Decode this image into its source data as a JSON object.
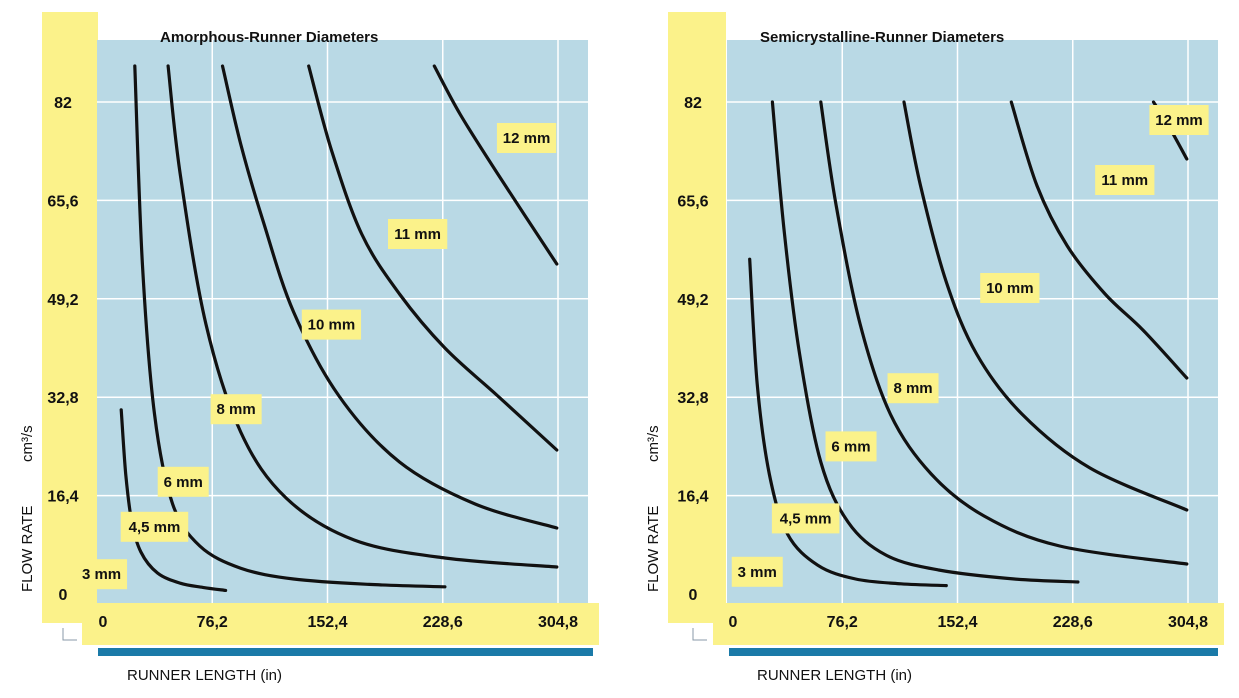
{
  "colors": {
    "plot_background": "#b9d9e5",
    "grid": "#ffffff",
    "label_highlight": "#fbf28a",
    "curve": "#111111",
    "axis_bar": "#1a7aa8"
  },
  "chart_data": [
    {
      "type": "line",
      "title": "Amorphous-Runner Diameters",
      "xlabel": "RUNNER LENGTH (in)",
      "ylabel": "FLOW RATE",
      "yunit": "cm³/s",
      "xlim": [
        0,
        304.8
      ],
      "ylim": [
        0,
        82
      ],
      "x_ticks": [
        "0",
        "76,2",
        "152,4",
        "228,6",
        "304,8"
      ],
      "y_ticks": [
        "82",
        "65,6",
        "49,2",
        "32,8",
        "16,4",
        "0"
      ],
      "grid": true,
      "series": [
        {
          "name": "3 mm",
          "label_at": [
            3,
            3.3
          ],
          "points": [
            [
              16,
              30.7
            ],
            [
              19,
              20
            ],
            [
              23,
              12
            ],
            [
              29,
              7
            ],
            [
              40,
              3.5
            ],
            [
              55,
              1.8
            ],
            [
              70,
              1.1
            ],
            [
              85,
              0.6
            ]
          ]
        },
        {
          "name": "4,5 mm",
          "label_at": [
            38,
            11.2
          ],
          "points": [
            [
              25,
              88
            ],
            [
              30,
              55
            ],
            [
              38,
              30
            ],
            [
              50,
              15
            ],
            [
              68,
              8
            ],
            [
              95,
              4.3
            ],
            [
              130,
              2.5
            ],
            [
              180,
              1.6
            ],
            [
              230,
              1.2
            ]
          ]
        },
        {
          "name": "6 mm",
          "label_at": [
            57,
            18.7
          ],
          "points": [
            [
              47,
              88
            ],
            [
              55,
              70
            ],
            [
              72,
              45
            ],
            [
              95,
              27
            ],
            [
              125,
              16
            ],
            [
              170,
              9
            ],
            [
              230,
              6
            ],
            [
              304,
              4.5
            ]
          ]
        },
        {
          "name": "8 mm",
          "label_at": [
            92,
            30.8
          ],
          "points": [
            [
              83,
              88
            ],
            [
              95,
              75
            ],
            [
              110,
              62
            ],
            [
              130,
              47
            ],
            [
              160,
              33
            ],
            [
              200,
              22
            ],
            [
              250,
              15
            ],
            [
              304,
              11
            ]
          ]
        },
        {
          "name": "10 mm",
          "label_at": [
            155,
            44.9
          ],
          "points": [
            [
              140,
              88
            ],
            [
              155,
              74
            ],
            [
              175,
              60
            ],
            [
              200,
              50
            ],
            [
              230,
              41
            ],
            [
              265,
              33
            ],
            [
              304,
              24
            ]
          ]
        },
        {
          "name": "11 mm",
          "label_at": [
            212,
            60
          ],
          "points": []
        },
        {
          "name": "12 mm",
          "label_at": [
            284,
            76
          ],
          "points": [
            [
              223,
              88
            ],
            [
              240,
              80
            ],
            [
              265,
              70
            ],
            [
              304,
              55
            ]
          ]
        }
      ]
    },
    {
      "type": "line",
      "title": "Semicrystalline-Runner Diameters",
      "xlabel": "RUNNER LENGTH (in)",
      "ylabel": "FLOW RATE",
      "yunit": "cm³/s",
      "xlim": [
        0,
        304.8
      ],
      "ylim": [
        0,
        82
      ],
      "x_ticks": [
        "0",
        "76,2",
        "152,4",
        "228,6",
        "304,8"
      ],
      "y_ticks": [
        "82",
        "65,6",
        "49,2",
        "32,8",
        "16,4",
        "0"
      ],
      "grid": true,
      "series": [
        {
          "name": "3 mm",
          "label_at": [
            20,
            3.7
          ],
          "points": [
            [
              15,
              55.8
            ],
            [
              20,
              35
            ],
            [
              28,
              20
            ],
            [
              40,
              10
            ],
            [
              60,
              4.8
            ],
            [
              85,
              2.5
            ],
            [
              115,
              1.7
            ],
            [
              145,
              1.4
            ]
          ]
        },
        {
          "name": "4,5 mm",
          "label_at": [
            52,
            12.6
          ],
          "points": [
            [
              30,
              82
            ],
            [
              38,
              60
            ],
            [
              48,
              40
            ],
            [
              62,
              22
            ],
            [
              80,
              12
            ],
            [
              105,
              6.5
            ],
            [
              140,
              4
            ],
            [
              190,
              2.5
            ],
            [
              232,
              2
            ]
          ]
        },
        {
          "name": "6 mm",
          "label_at": [
            82,
            24.6
          ],
          "points": [
            [
              62,
              82
            ],
            [
              72,
              65
            ],
            [
              88,
              45
            ],
            [
              108,
              30
            ],
            [
              135,
              20
            ],
            [
              170,
              13
            ],
            [
              220,
              8
            ],
            [
              304,
              5
            ]
          ]
        },
        {
          "name": "8 mm",
          "label_at": [
            123,
            34.3
          ],
          "points": [
            [
              117,
              82
            ],
            [
              128,
              68
            ],
            [
              145,
              52
            ],
            [
              165,
              40
            ],
            [
              195,
              30
            ],
            [
              240,
              21
            ],
            [
              304,
              14
            ]
          ]
        },
        {
          "name": "10 mm",
          "label_at": [
            187,
            51
          ],
          "points": [
            [
              188,
              82
            ],
            [
              205,
              68
            ],
            [
              225,
              58
            ],
            [
              250,
              50
            ],
            [
              275,
              44
            ],
            [
              304,
              36
            ]
          ]
        },
        {
          "name": "11 mm",
          "label_at": [
            263,
            69
          ],
          "points": []
        },
        {
          "name": "12 mm",
          "label_at": [
            308,
            79
          ],
          "points": [
            [
              282,
              82
            ],
            [
              292,
              78
            ],
            [
              304,
              72.5
            ]
          ]
        }
      ]
    }
  ]
}
